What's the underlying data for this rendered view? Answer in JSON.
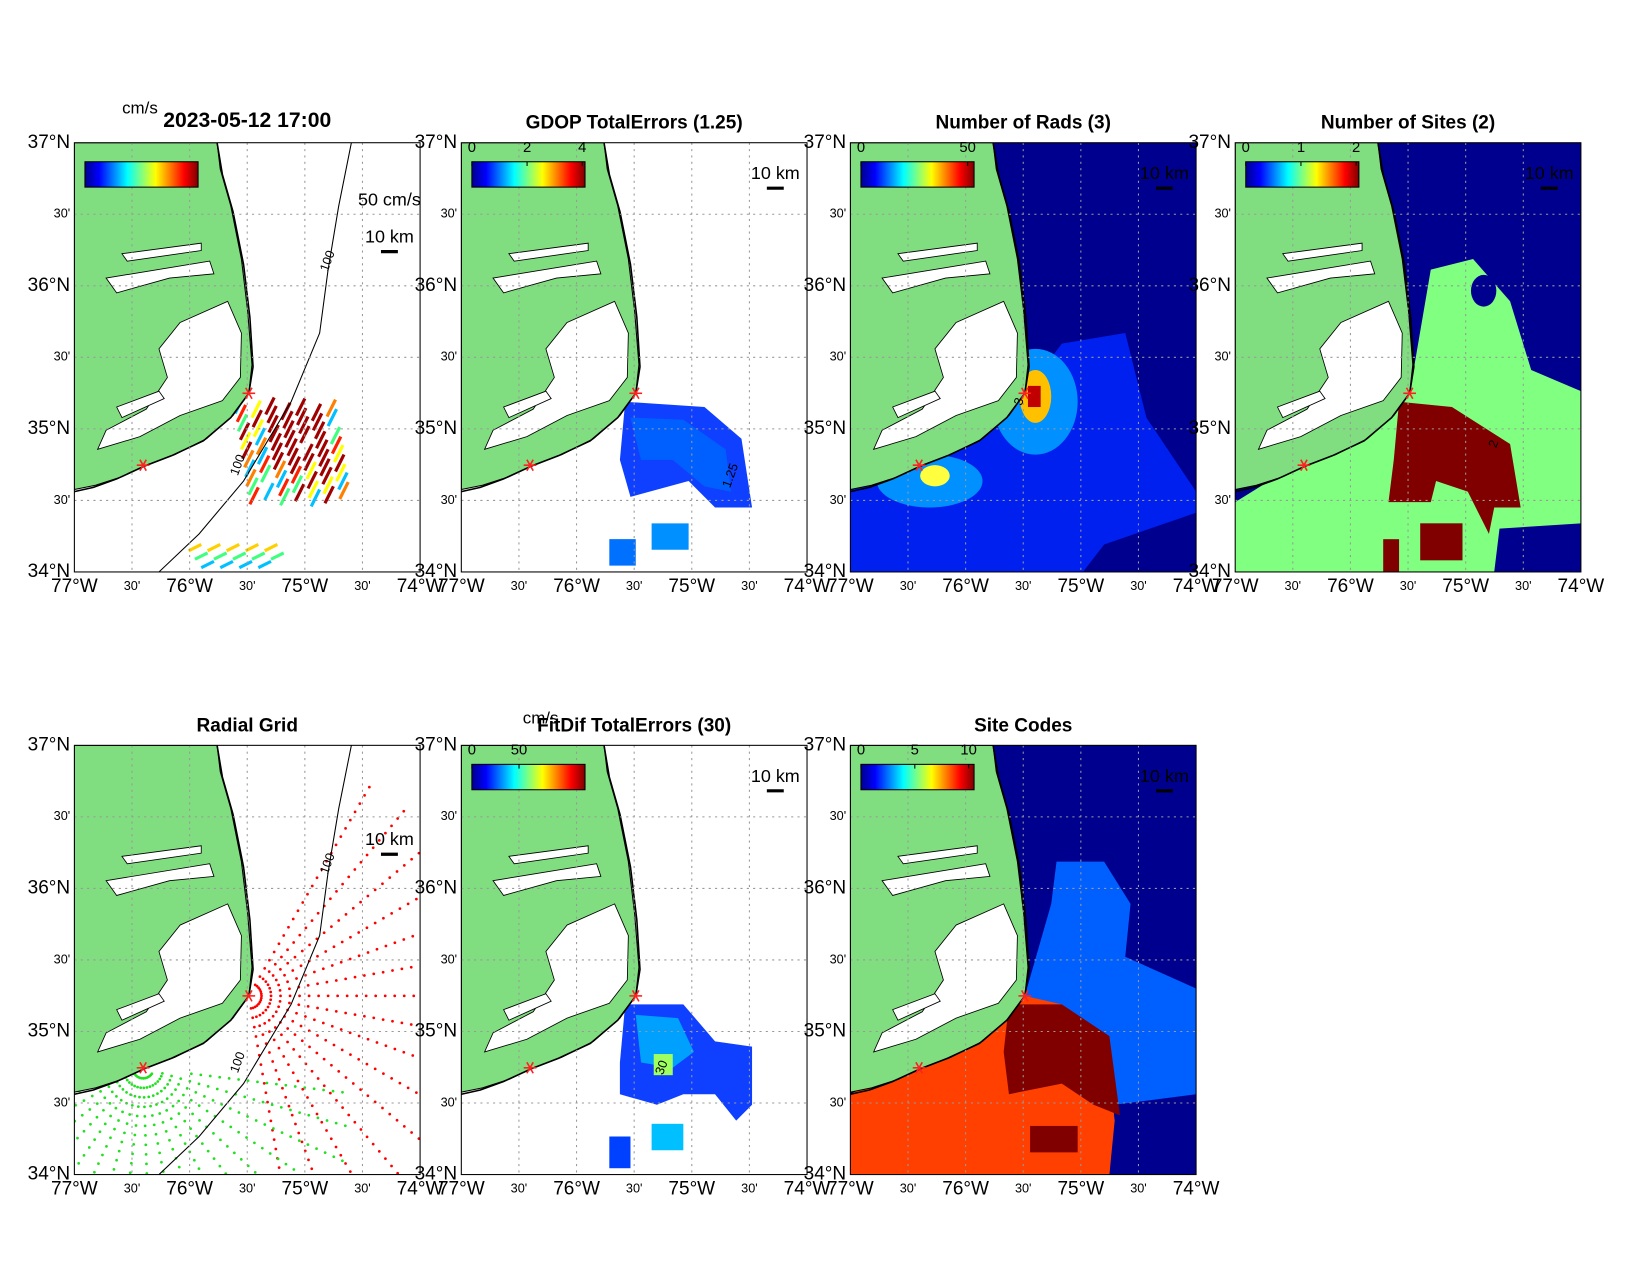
{
  "lat_labels": [
    "37°N",
    "30'",
    "36°N",
    "30'",
    "35°N",
    "30'",
    "34°N"
  ],
  "lon_labels": [
    "77°W",
    "30'",
    "76°W",
    "30'",
    "75°W",
    "30'",
    "74°W"
  ],
  "panels": [
    {
      "title": "2023-05-12 17:00",
      "unit": "cm/s",
      "scale_label": "10 km",
      "vector_scale_label": "50 cm/s",
      "contour_labels": [
        "100",
        "100"
      ]
    },
    {
      "title": "GDOP TotalErrors (1.25)",
      "colorbar_ticks": [
        0,
        2,
        4
      ],
      "clim": [
        0,
        4.1
      ],
      "scale_label": "10 km",
      "contour_labels": [
        "1.25"
      ]
    },
    {
      "title": "Number of Rads (3)",
      "colorbar_ticks": [
        0,
        50
      ],
      "clim": [
        0,
        53
      ],
      "scale_label": "10 km",
      "contour_labels": [
        "3"
      ]
    },
    {
      "title": "Number of Sites (2)",
      "colorbar_ticks": [
        0,
        1,
        2
      ],
      "clim": [
        0,
        2.05
      ],
      "scale_label": "10 km",
      "contour_labels": [
        "2"
      ]
    },
    {
      "title": "Radial Grid",
      "scale_label": "10 km",
      "contour_labels": [
        "100",
        "100"
      ]
    },
    {
      "title": "FitDif TotalErrors (30)",
      "unit": "cm/s",
      "colorbar_ticks": [
        0,
        50
      ],
      "clim": [
        0,
        120
      ],
      "scale_label": "10 km",
      "contour_labels": [
        "30"
      ]
    },
    {
      "title": "Site Codes",
      "colorbar_ticks": [
        0,
        5,
        10
      ],
      "clim": [
        0,
        10.5
      ],
      "scale_label": "10 km"
    }
  ]
}
